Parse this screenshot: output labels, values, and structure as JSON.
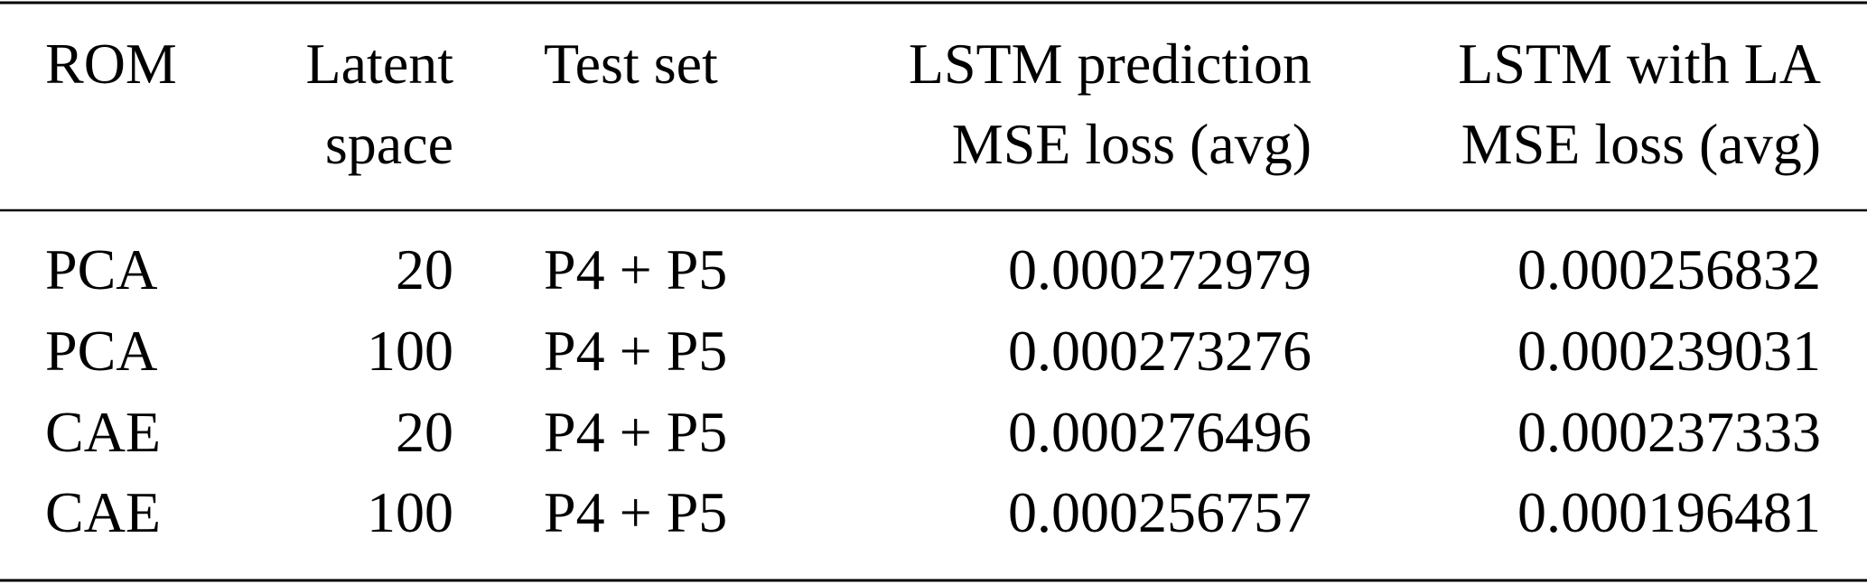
{
  "table": {
    "header": [
      [
        "ROM"
      ],
      [
        "Latent",
        "space"
      ],
      [
        "Test set"
      ],
      [
        "LSTM prediction",
        "MSE loss (avg)"
      ],
      [
        "LSTM with LA",
        "MSE loss (avg)"
      ]
    ],
    "rows": [
      [
        "PCA",
        "20",
        "P4 + P5",
        "0.000272979",
        "0.000256832"
      ],
      [
        "PCA",
        "100",
        "P4 + P5",
        "0.000273276",
        "0.000239031"
      ],
      [
        "CAE",
        "20",
        "P4 + P5",
        "0.000276496",
        "0.000237333"
      ],
      [
        "CAE",
        "100",
        "P4 + P5",
        "0.000256757",
        "0.000196481"
      ]
    ]
  }
}
